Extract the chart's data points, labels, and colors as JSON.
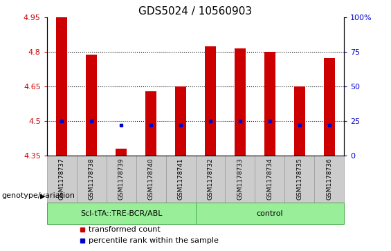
{
  "title": "GDS5024 / 10560903",
  "samples": [
    "GSM1178737",
    "GSM1178738",
    "GSM1178739",
    "GSM1178740",
    "GSM1178741",
    "GSM1178732",
    "GSM1178733",
    "GSM1178734",
    "GSM1178735",
    "GSM1178736"
  ],
  "transformed_count": [
    4.95,
    4.79,
    4.38,
    4.63,
    4.65,
    4.825,
    4.815,
    4.8,
    4.65,
    4.775
  ],
  "percentile_rank": [
    25,
    25,
    22,
    22,
    22,
    25,
    25,
    25,
    22,
    22
  ],
  "group1_indices": [
    0,
    1,
    2,
    3,
    4
  ],
  "group1_label": "Scl-tTA::TRE-BCR/ABL",
  "group2_indices": [
    5,
    6,
    7,
    8,
    9
  ],
  "group2_label": "control",
  "group_color": "#99ee99",
  "group_edge_color": "#44aa44",
  "ylim": [
    4.35,
    4.95
  ],
  "yticks": [
    4.35,
    4.5,
    4.65,
    4.8,
    4.95
  ],
  "ytick_labels": [
    "4.35",
    "4.5",
    "4.65",
    "4.8",
    "4.95"
  ],
  "right_yticks": [
    0,
    25,
    50,
    75,
    100
  ],
  "right_ytick_labels": [
    "0",
    "25",
    "50",
    "75",
    "100%"
  ],
  "bar_color": "#cc0000",
  "dot_color": "#0000cc",
  "grid_color": "#000000",
  "sample_box_color": "#cccccc",
  "sample_box_edge": "#999999",
  "plot_bg": "#ffffff",
  "title_fontsize": 11,
  "tick_fontsize": 8,
  "sample_fontsize": 6.5,
  "group_fontsize": 8,
  "legend_fontsize": 8,
  "genotype_label": "genotype/variation",
  "genotype_fontsize": 8,
  "left_tick_color": "#cc0000",
  "right_tick_color": "#0000cc",
  "legend_items": [
    {
      "label": "transformed count",
      "color": "#cc0000"
    },
    {
      "label": "percentile rank within the sample",
      "color": "#0000cc"
    }
  ]
}
